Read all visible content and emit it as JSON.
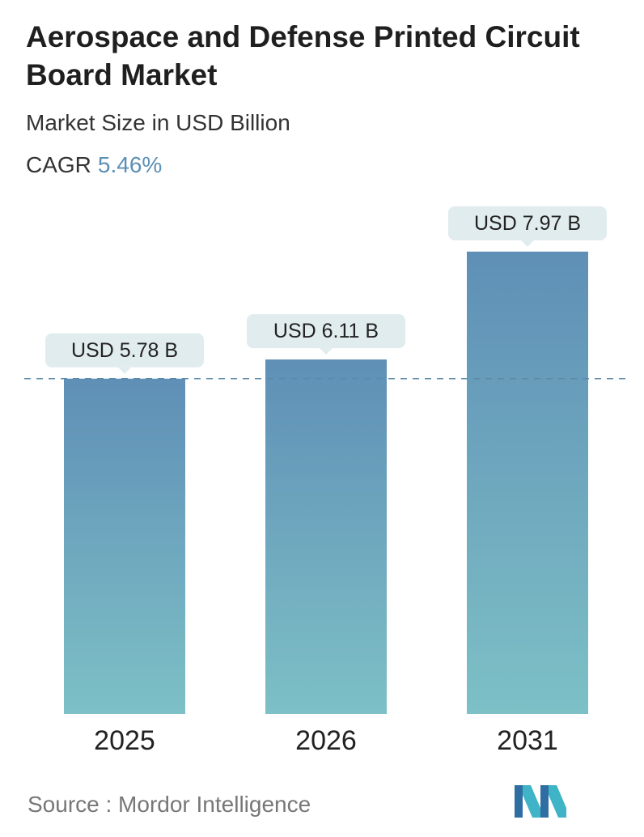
{
  "header": {
    "title": "Aerospace and Defense Printed Circuit Board Market",
    "subtitle": "Market Size in USD Billion",
    "cagr_label": "CAGR",
    "cagr_value": "5.46%"
  },
  "footer": {
    "source": "Source :  Mordor Intelligence",
    "logo_icon": "mordor-intelligence-logo-icon"
  },
  "colors": {
    "bar_top": "#5f8fb6",
    "bar_bottom": "#7dc0c6",
    "label_bg": "#e1ecee",
    "accent": "#5b8fb4",
    "reference_line": "#5a8aa8"
  },
  "chart_data": {
    "type": "bar",
    "categories": [
      "2025",
      "2026",
      "2031"
    ],
    "values": [
      5.78,
      6.11,
      7.97
    ],
    "data_labels": [
      "USD 5.78 B",
      "USD 6.11 B",
      "USD 7.97 B"
    ],
    "reference_line_value": 5.78,
    "ylim": [
      0,
      8.4
    ],
    "grid": false,
    "legend": "none"
  }
}
